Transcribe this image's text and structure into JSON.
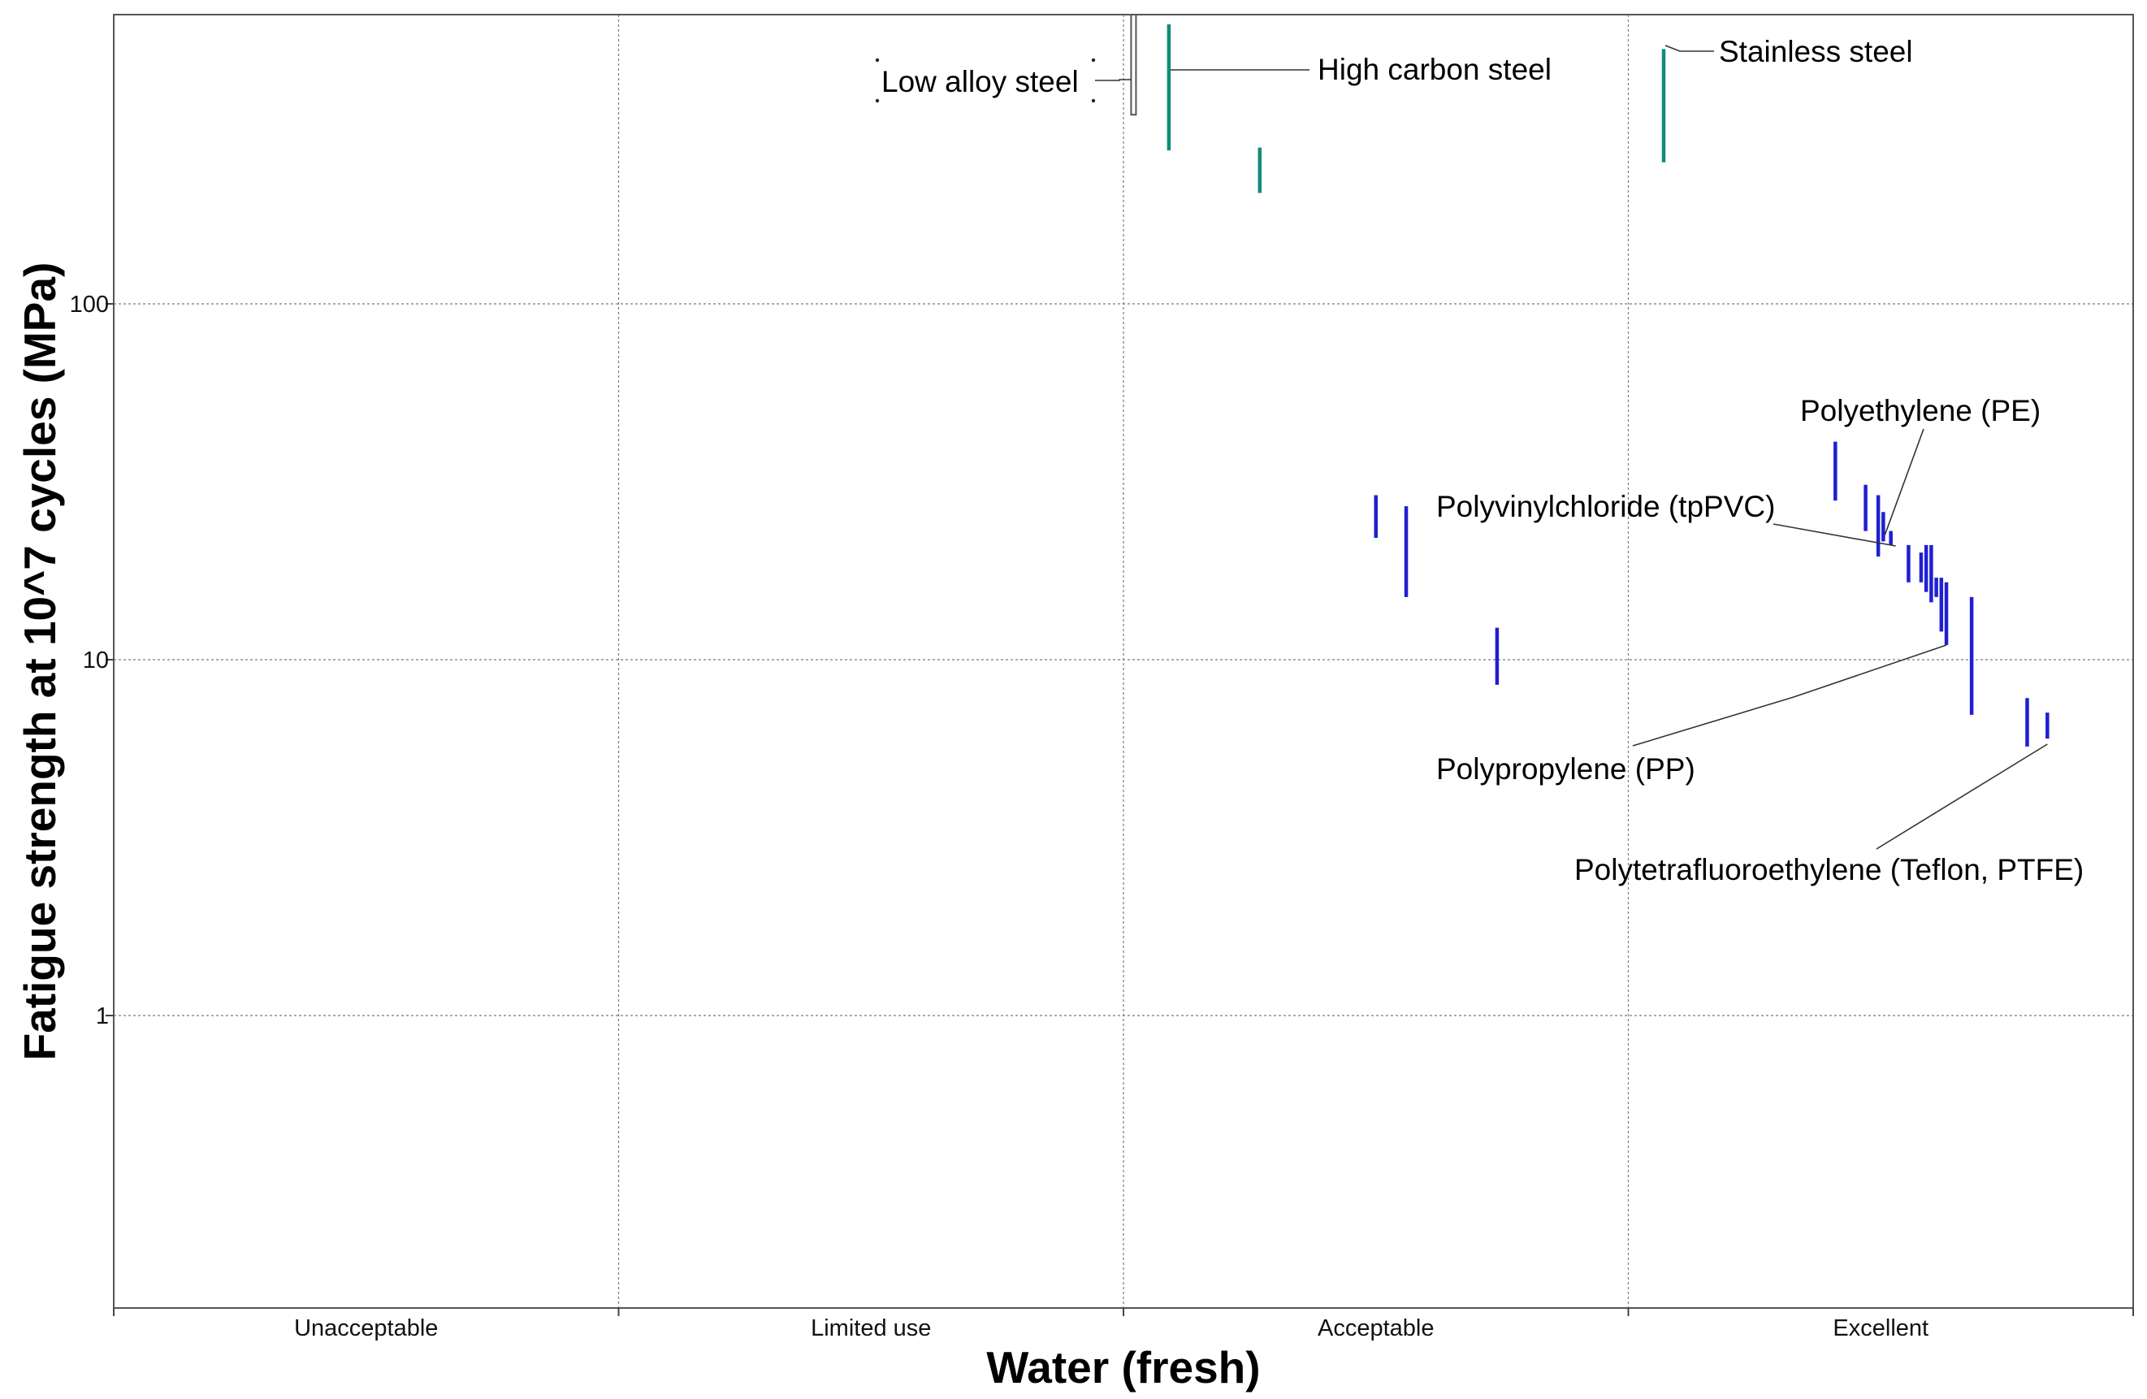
{
  "chart_data": {
    "type": "scatter",
    "title": "",
    "xlabel": "Water (fresh)",
    "ylabel": "Fatigue strength at 10^7 cycles (MPa)",
    "x_categories": [
      "Unacceptable",
      "Limited use",
      "Acceptable",
      "Excellent"
    ],
    "y_scale": "log",
    "ylim": [
      0.2,
      700
    ],
    "yticks": [
      1,
      10,
      100
    ],
    "ytick_labels": [
      "1",
      "10",
      "100"
    ],
    "grid": true,
    "colors": {
      "steel": "#138a7a",
      "polymer": "#1f1fd0",
      "low_alloy": "#ffffff"
    },
    "series": [
      {
        "name": "Steels",
        "color": "#138a7a",
        "bars": [
          {
            "label": "Low alloy steel",
            "x": "Acceptable",
            "x_offset": 0.02,
            "low": 340,
            "high": 700,
            "style": "outline"
          },
          {
            "label": "High carbon steel",
            "x": "Acceptable",
            "x_offset": 0.09,
            "low": 270,
            "high": 610
          },
          {
            "label": "",
            "x": "Acceptable",
            "x_offset": 0.27,
            "low": 205,
            "high": 275
          },
          {
            "label": "Stainless steel",
            "x": "Excellent",
            "x_offset": 0.07,
            "low": 250,
            "high": 520
          }
        ]
      },
      {
        "name": "Polymers",
        "color": "#1f1fd0",
        "bars": [
          {
            "label": "",
            "x": "Acceptable",
            "x_offset": 0.5,
            "low": 22,
            "high": 29
          },
          {
            "label": "",
            "x": "Acceptable",
            "x_offset": 0.56,
            "low": 15,
            "high": 27
          },
          {
            "label": "",
            "x": "Acceptable",
            "x_offset": 0.74,
            "low": 8.5,
            "high": 12.3
          },
          {
            "label": "",
            "x": "Excellent",
            "x_offset": 0.41,
            "low": 28,
            "high": 41
          },
          {
            "label": "",
            "x": "Excellent",
            "x_offset": 0.47,
            "low": 23,
            "high": 31
          },
          {
            "label": "",
            "x": "Excellent",
            "x_offset": 0.495,
            "low": 19.5,
            "high": 29
          },
          {
            "label": "Polyethylene (PE)",
            "x": "Excellent",
            "x_offset": 0.505,
            "low": 21.5,
            "high": 26
          },
          {
            "label": "Polyvinylchloride (tpPVC)",
            "x": "Excellent",
            "x_offset": 0.52,
            "low": 21,
            "high": 23
          },
          {
            "label": "",
            "x": "Excellent",
            "x_offset": 0.555,
            "low": 16.5,
            "high": 21
          },
          {
            "label": "",
            "x": "Excellent",
            "x_offset": 0.58,
            "low": 16.5,
            "high": 20
          },
          {
            "label": "",
            "x": "Excellent",
            "x_offset": 0.59,
            "low": 15.5,
            "high": 21
          },
          {
            "label": "",
            "x": "Excellent",
            "x_offset": 0.6,
            "low": 14.5,
            "high": 21
          },
          {
            "label": "",
            "x": "Excellent",
            "x_offset": 0.61,
            "low": 15,
            "high": 17
          },
          {
            "label": "",
            "x": "Excellent",
            "x_offset": 0.62,
            "low": 12,
            "high": 17
          },
          {
            "label": "Polypropylene (PP)",
            "x": "Excellent",
            "x_offset": 0.63,
            "low": 11,
            "high": 16.5
          },
          {
            "label": "",
            "x": "Excellent",
            "x_offset": 0.68,
            "low": 7,
            "high": 15
          },
          {
            "label": "",
            "x": "Excellent",
            "x_offset": 0.79,
            "low": 5.7,
            "high": 7.8
          },
          {
            "label": "Polytetrafluoroethylene (Teflon, PTFE)",
            "x": "Excellent",
            "x_offset": 0.83,
            "low": 6,
            "high": 7.1
          }
        ]
      }
    ],
    "annotations": [
      {
        "text": "Low alloy steel"
      },
      {
        "text": "High carbon steel"
      },
      {
        "text": "Stainless steel"
      },
      {
        "text": "Polyethylene (PE)"
      },
      {
        "text": "Polyvinylchloride (tpPVC)"
      },
      {
        "text": "Polypropylene (PP)"
      },
      {
        "text": "Polytetrafluoroethylene (Teflon, PTFE)"
      }
    ]
  }
}
